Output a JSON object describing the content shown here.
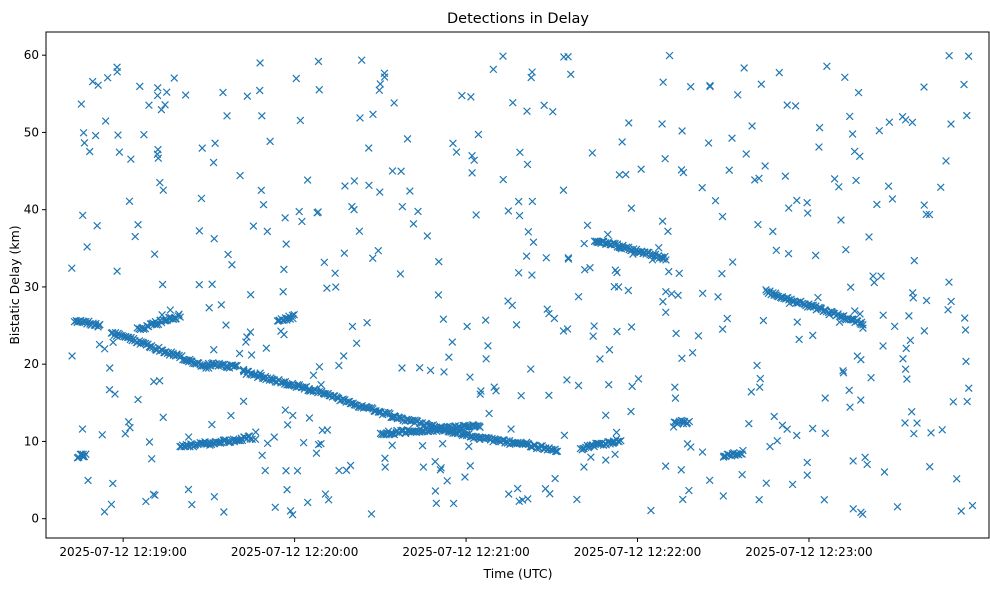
{
  "chart_data": {
    "type": "scatter",
    "title": "Detections in Delay",
    "xlabel": "Time (UTC)",
    "ylabel": "Bistatic Delay (km)",
    "x_unit": "seconds after 2025-07-12 12:18:00 UTC",
    "xlim": [
      33,
      363
    ],
    "ylim": [
      -2.5,
      63
    ],
    "x_ticks": [
      {
        "x": 60,
        "label": "2025-07-12 12:19:00"
      },
      {
        "x": 120,
        "label": "2025-07-12 12:20:00"
      },
      {
        "x": 180,
        "label": "2025-07-12 12:21:00"
      },
      {
        "x": 240,
        "label": "2025-07-12 12:22:00"
      },
      {
        "x": 300,
        "label": "2025-07-12 12:23:00"
      }
    ],
    "y_ticks": [
      0,
      10,
      20,
      30,
      40,
      50,
      60
    ],
    "marker": "x",
    "grid": false,
    "colors": {
      "series": "#1f77b4"
    },
    "tracks": [
      {
        "x_start": 43,
        "x_end": 52,
        "y_start": 25.7,
        "y_end": 25.0
      },
      {
        "x_start": 56,
        "x_end": 90,
        "y_start": 24.1,
        "y_end": 19.6
      },
      {
        "x_start": 65,
        "x_end": 80,
        "y_start": 24.5,
        "y_end": 26.3
      },
      {
        "x_start": 114,
        "x_end": 120,
        "y_start": 25.5,
        "y_end": 26.2
      },
      {
        "x_start": 90,
        "x_end": 100,
        "y_start": 20.0,
        "y_end": 19.6
      },
      {
        "x_start": 102,
        "x_end": 125,
        "y_start": 19.0,
        "y_end": 16.8
      },
      {
        "x_start": 125,
        "x_end": 155,
        "y_start": 16.8,
        "y_end": 13.2
      },
      {
        "x_start": 155,
        "x_end": 185,
        "y_start": 13.2,
        "y_end": 10.4
      },
      {
        "x_start": 185,
        "x_end": 212,
        "y_start": 10.4,
        "y_end": 8.9
      },
      {
        "x_start": 150,
        "x_end": 185,
        "y_start": 11.0,
        "y_end": 12.0
      },
      {
        "x_start": 220,
        "x_end": 234,
        "y_start": 9.1,
        "y_end": 10.2
      },
      {
        "x_start": 253,
        "x_end": 258,
        "y_start": 12.4,
        "y_end": 12.6
      },
      {
        "x_start": 80,
        "x_end": 105,
        "y_start": 9.3,
        "y_end": 10.5
      },
      {
        "x_start": 270,
        "x_end": 277,
        "y_start": 8.0,
        "y_end": 8.6
      },
      {
        "x_start": 225,
        "x_end": 250,
        "y_start": 36.1,
        "y_end": 33.7
      },
      {
        "x_start": 285,
        "x_end": 319,
        "y_start": 29.4,
        "y_end": 25.2
      },
      {
        "x_start": 44,
        "x_end": 47,
        "y_start": 8.1,
        "y_end": 8.3
      }
    ],
    "noise": {
      "count": 520,
      "x_range": [
        42,
        358
      ],
      "y_range": [
        0.5,
        60
      ]
    }
  }
}
